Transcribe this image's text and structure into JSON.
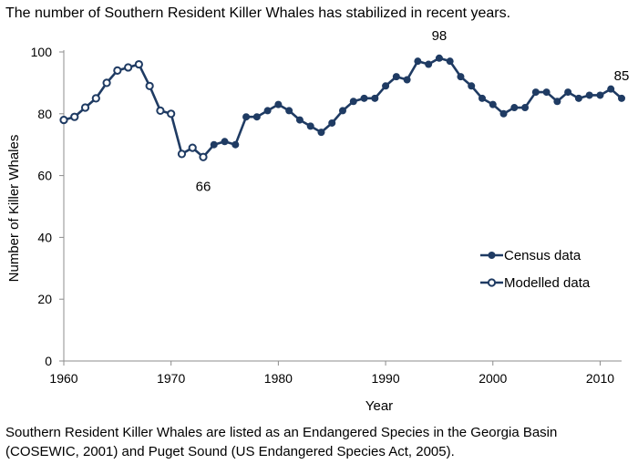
{
  "page": {
    "title": "The number of Southern Resident Killer Whales has stabilized in recent years.",
    "caption_line1": "Southern Resident Killer Whales are listed as an Endangered Species in the Georgia Basin",
    "caption_line2": "(COSEWIC, 2001) and Puget Sound (US Endangered Species Act, 2005)."
  },
  "chart_data": {
    "type": "line",
    "title": "The number of Southern Resident Killer Whales has stabilized in recent years.",
    "xlabel": "Year",
    "ylabel": "Number of Killer Whales",
    "xlim": [
      1960,
      2012
    ],
    "ylim": [
      0,
      100
    ],
    "xticks": [
      1960,
      1970,
      1980,
      1990,
      2000,
      2010
    ],
    "yticks": [
      0,
      20,
      40,
      60,
      80,
      100
    ],
    "grid": false,
    "legend_position": "lower-right",
    "line_color": "#1f3b63",
    "series": [
      {
        "name": "Census data",
        "marker": "filled",
        "points": [
          [
            1973,
            66
          ],
          [
            1974,
            70
          ],
          [
            1975,
            71
          ],
          [
            1976,
            70
          ],
          [
            1977,
            79
          ],
          [
            1978,
            79
          ],
          [
            1979,
            81
          ],
          [
            1980,
            83
          ],
          [
            1981,
            81
          ],
          [
            1982,
            78
          ],
          [
            1983,
            76
          ],
          [
            1984,
            74
          ],
          [
            1985,
            77
          ],
          [
            1986,
            81
          ],
          [
            1987,
            84
          ],
          [
            1988,
            85
          ],
          [
            1989,
            85
          ],
          [
            1990,
            89
          ],
          [
            1991,
            92
          ],
          [
            1992,
            91
          ],
          [
            1993,
            97
          ],
          [
            1994,
            96
          ],
          [
            1995,
            98
          ],
          [
            1996,
            97
          ],
          [
            1997,
            92
          ],
          [
            1998,
            89
          ],
          [
            1999,
            85
          ],
          [
            2000,
            83
          ],
          [
            2001,
            80
          ],
          [
            2002,
            82
          ],
          [
            2003,
            82
          ],
          [
            2004,
            87
          ],
          [
            2005,
            87
          ],
          [
            2006,
            84
          ],
          [
            2007,
            87
          ],
          [
            2008,
            85
          ],
          [
            2009,
            86
          ],
          [
            2010,
            86
          ],
          [
            2011,
            88
          ],
          [
            2012,
            85
          ]
        ]
      },
      {
        "name": "Modelled data",
        "marker": "open",
        "points": [
          [
            1960,
            78
          ],
          [
            1961,
            79
          ],
          [
            1962,
            82
          ],
          [
            1963,
            85
          ],
          [
            1964,
            90
          ],
          [
            1965,
            94
          ],
          [
            1966,
            95
          ],
          [
            1967,
            96
          ],
          [
            1968,
            89
          ],
          [
            1969,
            81
          ],
          [
            1970,
            80
          ],
          [
            1971,
            67
          ],
          [
            1972,
            69
          ],
          [
            1973,
            66
          ]
        ]
      }
    ],
    "annotations": [
      {
        "x": 1973,
        "y": 66,
        "text": "66",
        "position": "below"
      },
      {
        "x": 1995,
        "y": 98,
        "text": "98",
        "position": "above"
      },
      {
        "x": 2012,
        "y": 85,
        "text": "85",
        "position": "above"
      }
    ]
  }
}
